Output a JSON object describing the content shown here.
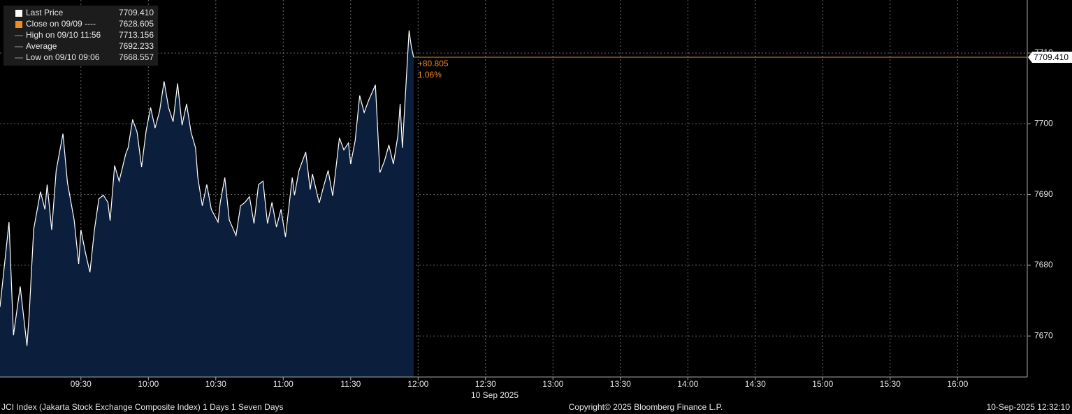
{
  "chart_data": {
    "type": "area",
    "x": [
      "08:54",
      "08:58",
      "09:00",
      "09:03",
      "09:06",
      "09:07",
      "09:09",
      "09:12",
      "09:14",
      "09:15",
      "09:17",
      "09:19",
      "09:22",
      "09:24",
      "09:27",
      "09:29",
      "09:30",
      "09:32",
      "09:34",
      "09:36",
      "09:38",
      "09:40",
      "09:42",
      "09:43",
      "09:45",
      "09:47",
      "09:50",
      "09:51",
      "09:53",
      "09:55",
      "09:57",
      "09:59",
      "10:01",
      "10:03",
      "10:05",
      "10:07",
      "10:09",
      "10:11",
      "10:13",
      "10:15",
      "10:17",
      "10:19",
      "10:21",
      "10:22",
      "10:24",
      "10:26",
      "10:28",
      "10:31",
      "10:32",
      "10:34",
      "10:36",
      "10:39",
      "10:41",
      "10:43",
      "10:45",
      "10:47",
      "10:49",
      "10:51",
      "10:53",
      "10:55",
      "10:57",
      "10:59",
      "11:01",
      "11:04",
      "11:05",
      "11:07",
      "11:10",
      "11:12",
      "11:13",
      "11:16",
      "11:18",
      "11:20",
      "11:22",
      "11:25",
      "11:27",
      "11:29",
      "11:30",
      "11:32",
      "11:34",
      "11:36",
      "11:38",
      "11:41",
      "11:43",
      "11:45",
      "11:47",
      "11:49",
      "11:51",
      "11:52",
      "11:53",
      "11:56",
      "11:57",
      "11:58"
    ],
    "series": [
      {
        "name": "Last Price",
        "color": "#ffffff",
        "fill": "#0b1f3c",
        "values": [
          7674.1,
          7686.1,
          7670.1,
          7677.0,
          7668.6,
          7673.1,
          7685.1,
          7690.4,
          7687.9,
          7691.4,
          7685.0,
          7693.4,
          7698.6,
          7691.7,
          7686.4,
          7680.2,
          7685.0,
          7681.8,
          7679.0,
          7685.0,
          7689.4,
          7689.9,
          7688.9,
          7686.3,
          7694.1,
          7691.9,
          7695.8,
          7696.6,
          7700.6,
          7698.8,
          7693.9,
          7699.0,
          7702.3,
          7699.4,
          7701.8,
          7706.0,
          7702.3,
          7700.3,
          7705.7,
          7699.8,
          7702.8,
          7698.8,
          7696.6,
          7692.4,
          7688.4,
          7691.4,
          7687.9,
          7686.1,
          7688.9,
          7692.4,
          7686.4,
          7684.2,
          7688.4,
          7688.9,
          7689.7,
          7685.9,
          7691.4,
          7691.9,
          7685.9,
          7688.9,
          7685.4,
          7687.9,
          7684.0,
          7692.4,
          7689.9,
          7693.4,
          7696.0,
          7690.7,
          7692.9,
          7688.8,
          7691.2,
          7693.4,
          7689.8,
          7698.0,
          7696.3,
          7697.3,
          7694.3,
          7697.6,
          7704.0,
          7701.6,
          7703.3,
          7705.5,
          7693.1,
          7694.7,
          7697.0,
          7694.3,
          7698.3,
          7702.8,
          7696.6,
          7713.2,
          7710.9,
          7709.4
        ]
      }
    ],
    "xlim": [
      "08:54",
      "16:31"
    ],
    "xticks": [
      "09:30",
      "10:00",
      "10:30",
      "11:00",
      "11:30",
      "12:00",
      "12:30",
      "13:00",
      "13:30",
      "14:00",
      "14:30",
      "15:00",
      "15:30",
      "16:00"
    ],
    "x_sublabel": "10 Sep 2025",
    "ylim": [
      7664.2,
      7717.5
    ],
    "yticks": [
      7670,
      7680,
      7690,
      7700,
      7710
    ],
    "grid": true,
    "last_price": {
      "value": 7709.41,
      "label": "7709.410",
      "color": "#f08a24"
    },
    "annotations": [
      "+80.805",
      "1.06%"
    ],
    "legend": {
      "position": "upper left",
      "entries": [
        {
          "name": "Close on 09/09 ----",
          "value": "7628.605",
          "color": "#f08a24"
        },
        {
          "name": "High on 09/10 11:56",
          "value": "7713.156"
        },
        {
          "name": "Average",
          "value": "7692.233"
        },
        {
          "name": "Low on 09/10 09:06",
          "value": "7668.557"
        }
      ]
    }
  },
  "footer": {
    "left": "JCI Index (Jakarta Stock Exchange Composite Index) 1 Days 1 Seven Days",
    "center": "Copyright© 2025 Bloomberg Finance L.P.",
    "right": "10-Sep-2025 12:32:10"
  }
}
